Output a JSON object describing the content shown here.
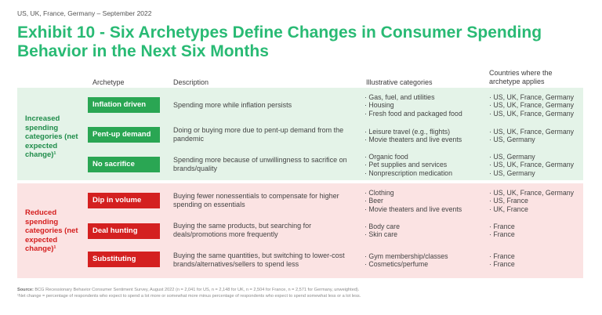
{
  "eyebrow": "US, UK, France, Germany – September 2022",
  "title": "Exhibit 10 - Six Archetypes Define Changes in Consumer Spending Behavior in the Next Six Months",
  "headers": {
    "archetype": "Archetype",
    "description": "Description",
    "categories": "Illustrative categories",
    "countries": "Countries where the archetype applies"
  },
  "groups": {
    "increased": "Increased spending categories (net expected change)¹",
    "reduced": "Reduced spending categories (net expected change)¹"
  },
  "rows": [
    {
      "archetype": "Inflation driven",
      "description": "Spending more while inflation persists",
      "categories": [
        "· Gas, fuel, and utilities",
        "· Housing",
        "· Fresh food and packaged food"
      ],
      "countries": [
        "· US, UK, France, Germany",
        "· US, UK, France, Germany",
        "· US, UK, France, Germany"
      ]
    },
    {
      "archetype": "Pent-up demand",
      "description": "Doing or buying more due to pent-up demand from the pandemic",
      "categories": [
        "· Leisure travel (e.g., flights)",
        "· Movie theaters and live events"
      ],
      "countries": [
        "· US, UK, France, Germany",
        "· US, Germany"
      ]
    },
    {
      "archetype": "No sacrifice",
      "description": "Spending more because of unwillingness to sacrifice on brands/quality",
      "categories": [
        "· Organic food",
        "· Pet supplies and services",
        "· Nonprescription medication"
      ],
      "countries": [
        "· US, Germany",
        "· US, UK, France, Germany",
        "· US, Germany"
      ]
    },
    {
      "archetype": "Dip in volume",
      "description": "Buying fewer nonessentials to compensate for higher spending on essentials",
      "categories": [
        "· Clothing",
        "· Beer",
        "· Movie theaters and live events"
      ],
      "countries": [
        "· US, UK, France, Germany",
        "· US, France",
        "· UK, France"
      ]
    },
    {
      "archetype": "Deal hunting",
      "description": "Buying the same products, but searching for deals/promotions more frequently",
      "categories": [
        "· Body care",
        "· Skin care"
      ],
      "countries": [
        "· France",
        "· France"
      ]
    },
    {
      "archetype": "Substituting",
      "description": "Buying the same quantities, but switching to lower-cost brands/alternatives/sellers to spend less",
      "categories": [
        "· Gym membership/classes",
        "· Cosmetics/perfume"
      ],
      "countries": [
        "· France",
        "· France"
      ]
    }
  ],
  "source": {
    "label": "Source:",
    "text": "BCG Recessionary Behavior Consumer Sentiment Survey, August 2022 (n = 2,041 for US, n = 2,148 for UK, n = 2,504 for France, n = 2,571 for Germany, unweighted).",
    "note": "¹Net change = percentage of respondents who expect to spend a lot more or somewhat more minus percentage of respondents who expect to spend somewhat less or a lot less."
  },
  "colors": {
    "title_green": "#29ba74",
    "increase_badge": "#2aa653",
    "increase_panel": "#e4f3e8",
    "reduce_badge": "#d42020",
    "reduce_panel": "#fbe3e3"
  }
}
